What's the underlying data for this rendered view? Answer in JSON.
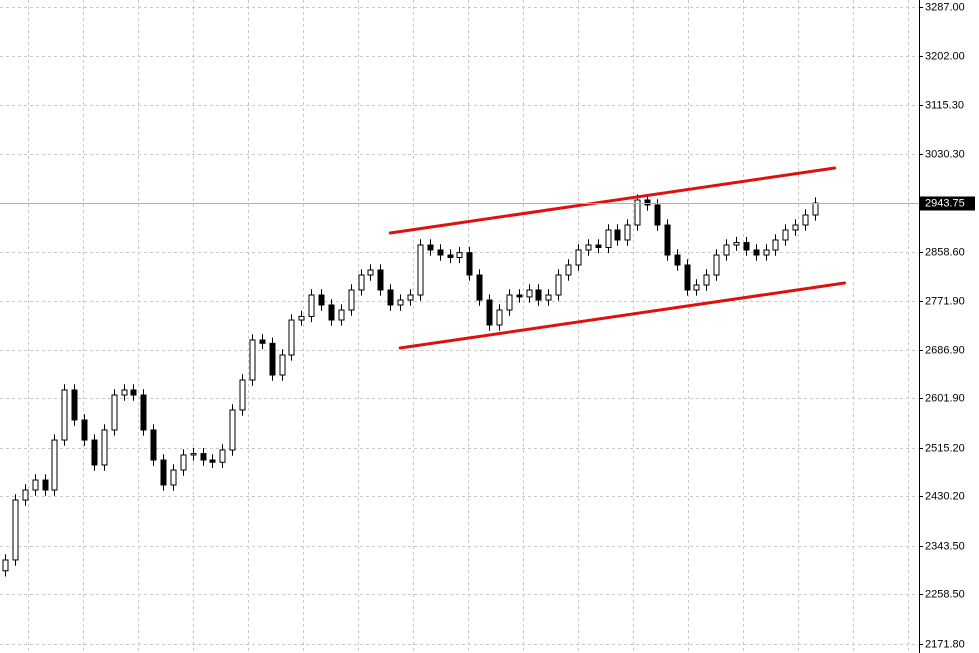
{
  "chart_data": {
    "type": "candlestick",
    "ylim": [
      2171.8,
      3287
    ],
    "yticks": [
      {
        "value": 3287,
        "label": "3287.00"
      },
      {
        "value": 3202,
        "label": "3202.00"
      },
      {
        "value": 3115.3,
        "label": "3115.30"
      },
      {
        "value": 3030.3,
        "label": "3030.30"
      },
      {
        "value": 2858.6,
        "label": "2858.60"
      },
      {
        "value": 2771.9,
        "label": "2771.90"
      },
      {
        "value": 2686.9,
        "label": "2686.90"
      },
      {
        "value": 2601.9,
        "label": "2601.90"
      },
      {
        "value": 2515.2,
        "label": "2515.20"
      },
      {
        "value": 2430.2,
        "label": "2430.20"
      },
      {
        "value": 2343.5,
        "label": "2343.50"
      },
      {
        "value": 2258.5,
        "label": "2258.50"
      },
      {
        "value": 2171.8,
        "label": "2171.80"
      }
    ],
    "grid": true,
    "last_price": 2943.75,
    "color": "#000000",
    "open": [
      2300.0,
      2318.9,
      2423.9,
      2441.4,
      2458.9,
      2441.4,
      2528.9,
      2616.5,
      2564.0,
      2528.9,
      2485.2,
      2546.5,
      2607.7,
      2616.5,
      2607.7,
      2546.5,
      2493.9,
      2450.2,
      2476.4,
      2502.7,
      2505.1,
      2493.9,
      2490.0,
      2511.4,
      2581.5,
      2634.0,
      2704.0,
      2698.2,
      2642.7,
      2677.8,
      2739.0,
      2745.3,
      2782.8,
      2765.3,
      2739.0,
      2756.5,
      2791.6,
      2817.8,
      2826.6,
      2791.6,
      2765.3,
      2774.0,
      2782.8,
      2870.3,
      2861.6,
      2852.8,
      2848.5,
      2857.0,
      2817.8,
      2774.0,
      2730.3,
      2756.5,
      2782.8,
      2779.4,
      2791.6,
      2774.0,
      2782.8,
      2817.8,
      2835.3,
      2861.6,
      2870.3,
      2866.0,
      2896.6,
      2879.1,
      2905.3,
      2949.1,
      2940.4,
      2905.3,
      2852.8,
      2835.3,
      2791.6,
      2800.3,
      2817.8,
      2852.8,
      2870.3,
      2874.6,
      2861.6,
      2852.8,
      2861.6,
      2879.1,
      2896.6,
      2905.3,
      2922.9
    ],
    "high": [
      2328.9,
      2433.9,
      2451.4,
      2468.9,
      2468.9,
      2538.9,
      2626.5,
      2626.5,
      2574.0,
      2538.9,
      2556.5,
      2617.7,
      2626.5,
      2626.5,
      2617.7,
      2556.5,
      2503.9,
      2486.4,
      2512.7,
      2515.1,
      2515.1,
      2503.9,
      2521.4,
      2591.5,
      2644.0,
      2714.0,
      2714.0,
      2708.2,
      2687.8,
      2749.0,
      2755.3,
      2792.8,
      2792.8,
      2775.3,
      2766.5,
      2801.6,
      2827.8,
      2836.6,
      2836.6,
      2801.6,
      2784.0,
      2792.8,
      2880.3,
      2880.3,
      2871.6,
      2862.8,
      2867.0,
      2867.0,
      2827.8,
      2784.0,
      2766.5,
      2792.8,
      2792.8,
      2801.6,
      2801.6,
      2792.8,
      2827.8,
      2845.3,
      2871.6,
      2880.3,
      2880.3,
      2906.6,
      2906.6,
      2915.3,
      2959.1,
      2959.1,
      2950.4,
      2915.3,
      2862.8,
      2845.3,
      2810.3,
      2827.8,
      2862.8,
      2880.3,
      2884.6,
      2884.6,
      2871.6,
      2871.6,
      2889.1,
      2906.6,
      2915.3,
      2932.9,
      2953.75
    ],
    "low": [
      2290.0,
      2308.9,
      2413.9,
      2431.4,
      2431.4,
      2431.4,
      2518.9,
      2554.0,
      2518.9,
      2475.2,
      2475.2,
      2536.5,
      2597.7,
      2597.7,
      2536.5,
      2483.9,
      2440.2,
      2440.2,
      2466.4,
      2492.7,
      2483.9,
      2480.0,
      2480.0,
      2501.4,
      2571.5,
      2624.0,
      2688.2,
      2632.7,
      2632.7,
      2667.8,
      2729.0,
      2735.3,
      2755.3,
      2729.0,
      2729.0,
      2746.5,
      2781.6,
      2807.8,
      2781.6,
      2755.3,
      2755.3,
      2764.0,
      2772.8,
      2851.6,
      2842.8,
      2838.5,
      2838.5,
      2807.8,
      2764.0,
      2720.3,
      2720.3,
      2746.5,
      2769.4,
      2769.4,
      2764.0,
      2764.0,
      2772.8,
      2807.8,
      2825.3,
      2851.6,
      2856.0,
      2856.0,
      2869.1,
      2869.1,
      2895.3,
      2930.4,
      2895.3,
      2842.8,
      2825.3,
      2781.6,
      2781.6,
      2790.3,
      2807.8,
      2842.8,
      2860.3,
      2851.6,
      2842.8,
      2842.8,
      2851.6,
      2869.1,
      2886.6,
      2895.3,
      2912.9
    ],
    "close": [
      2318.9,
      2423.9,
      2441.4,
      2458.9,
      2441.4,
      2528.9,
      2616.5,
      2564.0,
      2528.9,
      2485.2,
      2546.5,
      2607.7,
      2616.5,
      2607.7,
      2546.5,
      2493.9,
      2450.2,
      2476.4,
      2502.7,
      2505.1,
      2493.9,
      2490.0,
      2511.4,
      2581.5,
      2634.0,
      2704.0,
      2698.2,
      2642.7,
      2677.8,
      2739.0,
      2745.3,
      2782.8,
      2765.3,
      2739.0,
      2756.5,
      2791.6,
      2817.8,
      2826.6,
      2791.6,
      2765.3,
      2774.0,
      2782.8,
      2870.3,
      2861.6,
      2852.8,
      2848.5,
      2857.0,
      2817.8,
      2774.0,
      2730.3,
      2756.5,
      2782.8,
      2779.4,
      2791.6,
      2774.0,
      2782.8,
      2817.8,
      2835.3,
      2861.6,
      2870.3,
      2866.0,
      2896.6,
      2879.1,
      2905.3,
      2949.1,
      2940.4,
      2905.3,
      2852.8,
      2835.3,
      2791.6,
      2800.3,
      2817.8,
      2852.8,
      2870.3,
      2874.6,
      2861.6,
      2852.8,
      2861.6,
      2879.1,
      2896.6,
      2905.3,
      2922.9,
      2943.75
    ],
    "trendlines": [
      {
        "color": "#e01010",
        "x": [
          39,
          84
        ],
        "values": [
          2891.3,
          3005.1
        ]
      },
      {
        "color": "#e01010",
        "x": [
          40,
          85
        ],
        "values": [
          2690.0,
          2803.8
        ]
      }
    ]
  }
}
